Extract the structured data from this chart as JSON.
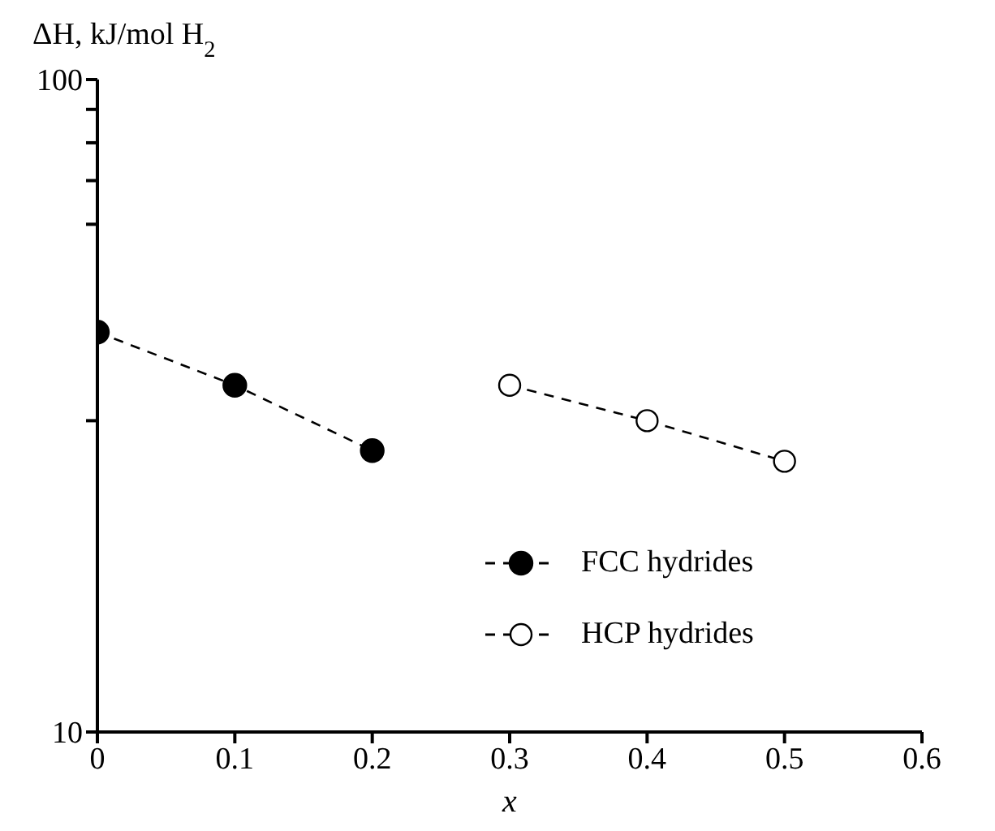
{
  "chart_data": {
    "type": "line",
    "ylabel": "ΔH, kJ/mol H$_{2}$",
    "xlabel": "x",
    "log": "y",
    "xlim": [
      0,
      0.6
    ],
    "xticks": [
      0,
      0.1,
      0.2,
      0.3,
      0.4,
      0.5,
      0.6
    ],
    "ylim": [
      10,
      100
    ],
    "yticks": [
      10,
      {
        "value": 30,
        "label": null
      },
      {
        "value": 60,
        "label": null
      },
      {
        "value": 70,
        "label": null
      },
      {
        "value": 80,
        "label": null
      },
      {
        "value": 90,
        "label": null
      },
      100
    ],
    "grid": false,
    "legend": "bottom right",
    "line_style": "dashed",
    "series": [
      {
        "name": "FCC hydrides",
        "color": "#000000",
        "marker": "circle",
        "x": [
          0,
          0.1,
          0.2
        ],
        "values": [
          41,
          34,
          27
        ]
      },
      {
        "name": "HCP hydrides",
        "color": "#000000",
        "marker": "circle-open",
        "x": [
          0.3,
          0.4,
          0.5
        ],
        "values": [
          34,
          30,
          26
        ]
      }
    ]
  }
}
